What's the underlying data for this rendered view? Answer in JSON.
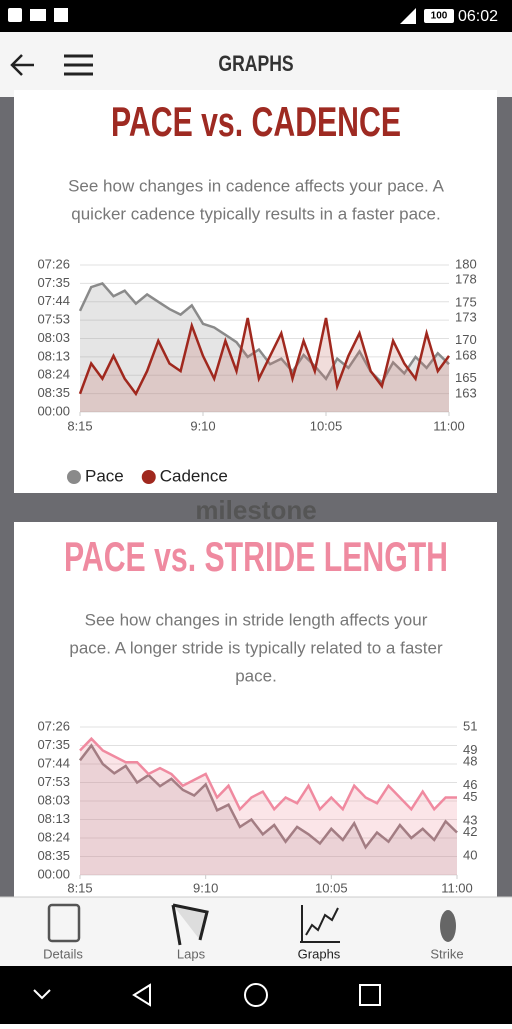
{
  "status_bar": {
    "battery": "100",
    "time": "06:02"
  },
  "header": {
    "title": "GRAPHS"
  },
  "watermark": "milestone",
  "chart_data": [
    {
      "type": "line",
      "title": "PACE vs. CADENCE",
      "title_color": "#9e2a22",
      "description": [
        "See how changes in cadence affects your pace. A",
        "quicker cadence typically results in a faster pace."
      ],
      "x": [
        0,
        5,
        10,
        15,
        20,
        25,
        30,
        35,
        40,
        45,
        50,
        55,
        60,
        65,
        70,
        75,
        80,
        85,
        90,
        95,
        100,
        105,
        110,
        115,
        120,
        125,
        130,
        135,
        140,
        145,
        150,
        155,
        160,
        165
      ],
      "xlim": [
        0,
        165
      ],
      "xticks": [
        {
          "value": 0,
          "label": "8:15"
        },
        {
          "value": 55,
          "label": "9:10"
        },
        {
          "value": 110,
          "label": "10:05"
        },
        {
          "value": 165,
          "label": "11:00"
        }
      ],
      "ylim": [
        0,
        8
      ],
      "yticks": [
        {
          "value": 0,
          "label": "00:00"
        },
        {
          "value": 1,
          "label": "08:35"
        },
        {
          "value": 2,
          "label": "08:24"
        },
        {
          "value": 3,
          "label": "08:13"
        },
        {
          "value": 4,
          "label": "08:03"
        },
        {
          "value": 5,
          "label": "07:53"
        },
        {
          "value": 6,
          "label": "07:44"
        },
        {
          "value": 7,
          "label": "07:35"
        },
        {
          "value": 8,
          "label": "07:26"
        }
      ],
      "y2lim": [
        160.6,
        180
      ],
      "y2ticks": [
        163,
        165,
        168,
        170,
        173,
        175,
        178,
        180
      ],
      "grid": true,
      "legend": true,
      "series": [
        {
          "name": "Pace",
          "color": "#8a8a8a",
          "fill": "rgba(150,150,150,0.25)",
          "values": [
            5.5,
            6.8,
            7.0,
            6.3,
            6.6,
            5.9,
            6.4,
            6.0,
            5.6,
            5.3,
            5.8,
            4.8,
            4.6,
            4.2,
            3.8,
            3.0,
            3.4,
            2.6,
            2.9,
            2.2,
            3.1,
            2.5,
            1.8,
            2.9,
            2.4,
            3.3,
            2.2,
            1.6,
            2.7,
            2.1,
            3.0,
            2.4,
            3.2,
            2.6
          ]
        },
        {
          "name": "Cadence",
          "color": "#a0281e",
          "fill": "rgba(200,120,110,0.25)",
          "axis": "y2",
          "values": [
            163,
            167,
            165,
            168,
            165,
            163,
            166,
            170,
            167,
            166,
            172,
            168,
            165,
            170,
            166,
            173,
            165,
            168,
            171,
            165,
            170,
            166,
            173,
            164,
            168,
            171,
            166,
            164,
            170,
            167,
            165,
            171,
            166,
            168
          ]
        }
      ]
    },
    {
      "type": "line",
      "title": "PACE vs. STRIDE LENGTH",
      "title_color": "#ef8aa0",
      "description": [
        "See how changes in stride length affects your",
        "pace. A longer stride is typically related to a faster",
        "pace."
      ],
      "x": [
        0,
        5,
        10,
        15,
        20,
        25,
        30,
        35,
        40,
        45,
        50,
        55,
        60,
        65,
        70,
        75,
        80,
        85,
        90,
        95,
        100,
        105,
        110,
        115,
        120,
        125,
        130,
        135,
        140,
        145,
        150,
        155,
        160,
        165
      ],
      "xlim": [
        0,
        165
      ],
      "xticks": [
        {
          "value": 0,
          "label": "8:15"
        },
        {
          "value": 55,
          "label": "9:10"
        },
        {
          "value": 110,
          "label": "10:05"
        },
        {
          "value": 165,
          "label": "11:00"
        }
      ],
      "ylim": [
        0,
        8
      ],
      "yticks": [
        {
          "value": 0,
          "label": "00:00"
        },
        {
          "value": 1,
          "label": "08:35"
        },
        {
          "value": 2,
          "label": "08:24"
        },
        {
          "value": 3,
          "label": "08:13"
        },
        {
          "value": 4,
          "label": "08:03"
        },
        {
          "value": 5,
          "label": "07:53"
        },
        {
          "value": 6,
          "label": "07:44"
        },
        {
          "value": 7,
          "label": "07:35"
        },
        {
          "value": 8,
          "label": "07:26"
        }
      ],
      "y2lim": [
        38.4,
        51
      ],
      "y2ticks": [
        40,
        42,
        43,
        45,
        46,
        48,
        49,
        51
      ],
      "grid": true,
      "legend": false,
      "series": [
        {
          "color": "#8a7478",
          "fill": "rgba(150,130,135,0.2)",
          "values": [
            6.2,
            7.0,
            6.0,
            5.5,
            5.9,
            5.0,
            5.4,
            4.8,
            5.2,
            4.6,
            4.3,
            4.9,
            3.5,
            3.8,
            2.6,
            3.0,
            2.2,
            2.7,
            1.8,
            2.6,
            2.2,
            1.7,
            2.5,
            1.9,
            2.8,
            1.5,
            2.3,
            1.8,
            2.7,
            2.0,
            2.5,
            1.9,
            2.9,
            2.3
          ]
        },
        {
          "color": "#f08aa0",
          "fill": "rgba(240,150,165,0.25)",
          "axis": "y2",
          "values": [
            49,
            50,
            49,
            48.5,
            48,
            48,
            47,
            47.5,
            47,
            46,
            46.5,
            47,
            45,
            46,
            44,
            45,
            45.5,
            44,
            45,
            44.5,
            46,
            44,
            45,
            44,
            46,
            45,
            44.5,
            46,
            45,
            44,
            45.5,
            44,
            45,
            45
          ]
        }
      ]
    }
  ],
  "bottom_nav": {
    "items": [
      "Details",
      "Laps",
      "Graphs",
      "Strike"
    ]
  }
}
